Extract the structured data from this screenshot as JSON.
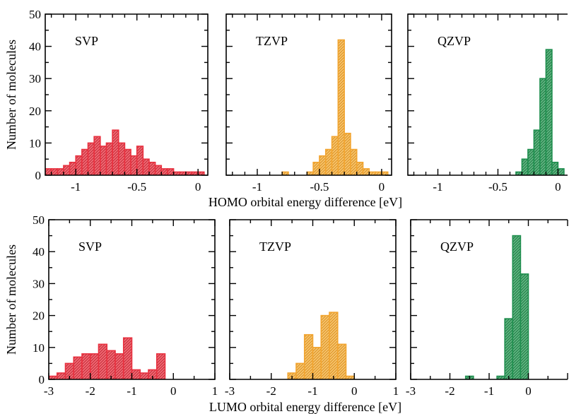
{
  "figure": {
    "ylabel_top": "Number of molecules",
    "ylabel_bottom": "Number of molecules",
    "xlabel_top": "HOMO orbital energy difference [eV]",
    "xlabel_bottom": "LUMO orbital energy difference [eV]"
  },
  "colors": {
    "red": "#e8313f",
    "orange": "#f2a531",
    "green": "#1e8e4e"
  },
  "chart_data": [
    {
      "type": "bar",
      "panel": "top-left",
      "label": "SVP",
      "color": "red",
      "xlim": [
        -1.25,
        0.08
      ],
      "ylim": [
        0,
        50
      ],
      "xticks": [
        "-1",
        "-0.5",
        "0"
      ],
      "yticks": [
        "0",
        "10",
        "20",
        "30",
        "40",
        "50"
      ],
      "bin_width": 0.05,
      "bin_left_edges": [
        -1.25,
        -1.2,
        -1.15,
        -1.1,
        -1.05,
        -1.0,
        -0.95,
        -0.9,
        -0.85,
        -0.8,
        -0.75,
        -0.7,
        -0.65,
        -0.6,
        -0.55,
        -0.5,
        -0.45,
        -0.4,
        -0.35,
        -0.3,
        -0.25,
        -0.2,
        -0.15,
        -0.1,
        -0.05,
        0.0
      ],
      "values": [
        2,
        2,
        2,
        3,
        4,
        6,
        8,
        10,
        12,
        9,
        10,
        14,
        10,
        8,
        6,
        9,
        5,
        4,
        3,
        2,
        2,
        1,
        1,
        1,
        1,
        1
      ]
    },
    {
      "type": "bar",
      "panel": "top-middle",
      "label": "TZVP",
      "color": "orange",
      "xlim": [
        -1.25,
        0.08
      ],
      "ylim": [
        0,
        50
      ],
      "xticks": [
        "-1",
        "-0.5",
        "0"
      ],
      "yticks": [],
      "bin_width": 0.05,
      "bin_left_edges": [
        -0.8,
        -0.75,
        -0.7,
        -0.65,
        -0.6,
        -0.55,
        -0.5,
        -0.45,
        -0.4,
        -0.35,
        -0.3,
        -0.25,
        -0.2,
        -0.15,
        -0.1,
        -0.05,
        0.0
      ],
      "values": [
        1,
        0,
        0,
        0,
        1,
        4,
        6,
        8,
        12,
        42,
        13,
        8,
        4,
        2,
        1,
        1,
        1
      ]
    },
    {
      "type": "bar",
      "panel": "top-right",
      "label": "QZVP",
      "color": "green",
      "xlim": [
        -1.25,
        0.08
      ],
      "ylim": [
        0,
        50
      ],
      "xticks": [
        "-1",
        "-0.5",
        "0"
      ],
      "yticks": [],
      "bin_width": 0.05,
      "bin_left_edges": [
        -0.35,
        -0.3,
        -0.25,
        -0.2,
        -0.15,
        -0.1,
        -0.05,
        0.0
      ],
      "values": [
        1,
        5,
        8,
        14,
        30,
        39,
        4,
        2
      ]
    },
    {
      "type": "bar",
      "panel": "bottom-left",
      "label": "SVP",
      "color": "red",
      "xlim": [
        -3,
        1
      ],
      "ylim": [
        0,
        50
      ],
      "xticks": [
        "-3",
        "-2",
        "-1",
        "0",
        "1"
      ],
      "yticks": [
        "0",
        "10",
        "20",
        "30",
        "40",
        "50"
      ],
      "bin_width": 0.2,
      "bin_left_edges": [
        -3.0,
        -2.8,
        -2.6,
        -2.4,
        -2.2,
        -2.0,
        -1.8,
        -1.6,
        -1.4,
        -1.2,
        -1.0,
        -0.8,
        -0.6,
        -0.4
      ],
      "values": [
        1,
        2,
        5,
        7,
        8,
        8,
        11,
        9,
        8,
        13,
        3,
        2,
        3,
        8
      ]
    },
    {
      "type": "bar",
      "panel": "bottom-middle",
      "label": "TZVP",
      "color": "orange",
      "xlim": [
        -3,
        1
      ],
      "ylim": [
        0,
        50
      ],
      "xticks": [
        "-3",
        "-2",
        "-1",
        "0",
        "1"
      ],
      "yticks": [],
      "bin_width": 0.2,
      "bin_left_edges": [
        -1.6,
        -1.4,
        -1.2,
        -1.0,
        -0.8,
        -0.6,
        -0.4,
        -0.2
      ],
      "values": [
        2,
        5,
        14,
        10,
        20,
        21,
        11,
        1
      ]
    },
    {
      "type": "bar",
      "panel": "bottom-right",
      "label": "QZVP",
      "color": "green",
      "xlim": [
        -3,
        1
      ],
      "ylim": [
        0,
        50
      ],
      "xticks": [
        "-3",
        "-2",
        "-1",
        "0"
      ],
      "yticks": [],
      "bin_width": 0.2,
      "bin_left_edges": [
        -1.6,
        -1.4,
        -1.2,
        -1.0,
        -0.8,
        -0.6,
        -0.4,
        -0.2
      ],
      "values": [
        1,
        0,
        0,
        0,
        1,
        19,
        45,
        33
      ]
    }
  ]
}
